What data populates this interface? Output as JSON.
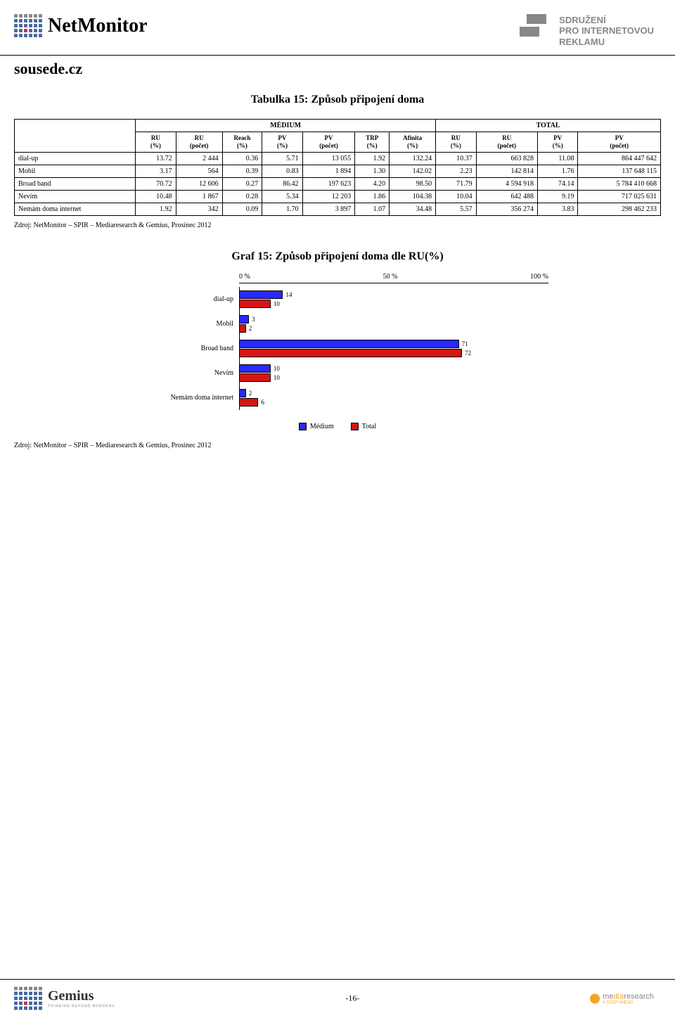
{
  "header": {
    "brand": "NetMonitor",
    "spir_line1": "SDRUŽENÍ",
    "spir_line2": "PRO INTERNETOVOU",
    "spir_line3": "REKLAMU"
  },
  "site_title": "sousede.cz",
  "table_title": "Tabulka 15: Způsob připojení doma",
  "table": {
    "group1": "MÉDIUM",
    "group2": "TOTAL",
    "columns": [
      "RU\n(%)",
      "RU\n(počet)",
      "Reach\n(%)",
      "PV\n(%)",
      "PV\n(počet)",
      "TRP\n(%)",
      "Afinita\n(%)",
      "RU\n(%)",
      "RU\n(počet)",
      "PV\n(%)",
      "PV\n(počet)"
    ],
    "rows": [
      {
        "label": "dial-up",
        "cells": [
          "13.72",
          "2 444",
          "0.36",
          "5.71",
          "13 055",
          "1.92",
          "132.24",
          "10.37",
          "663 828",
          "11.08",
          "864 447 642"
        ]
      },
      {
        "label": "Mobil",
        "cells": [
          "3.17",
          "564",
          "0.39",
          "0.83",
          "1 894",
          "1.30",
          "142.02",
          "2.23",
          "142 814",
          "1.76",
          "137 648 115"
        ]
      },
      {
        "label": "Broad band",
        "cells": [
          "70.72",
          "12 606",
          "0.27",
          "86.42",
          "197 623",
          "4.20",
          "98.50",
          "71.79",
          "4 594 918",
          "74.14",
          "5 784 410 668"
        ]
      },
      {
        "label": "Nevím",
        "cells": [
          "10.48",
          "1 867",
          "0.28",
          "5.34",
          "12 203",
          "1.86",
          "104.38",
          "10.04",
          "642 488",
          "9.19",
          "717 025 631"
        ]
      },
      {
        "label": "Nemám doma internet",
        "cells": [
          "1.92",
          "342",
          "0.09",
          "1.70",
          "3 897",
          "1.07",
          "34.48",
          "5.57",
          "356 274",
          "3.83",
          "298 462 233"
        ]
      }
    ]
  },
  "source": "Zdroj: NetMonitor – SPIR – Mediaresearch & Gemius, Prosinec 2012",
  "chart_title": "Graf 15: Způsob připojení doma dle RU(%)",
  "chart": {
    "type": "bar",
    "axis": {
      "min": 0,
      "max": 100,
      "ticks": [
        "0 %",
        "50 %",
        "100 %"
      ]
    },
    "categories": [
      "dial-up",
      "Mobil",
      "Broad band",
      "Nevím",
      "Nemám doma internet"
    ],
    "series": [
      {
        "name": "Médium",
        "color": "#2929ff",
        "values": [
          14,
          3,
          71,
          10,
          2
        ]
      },
      {
        "name": "Total",
        "color": "#d81414",
        "values": [
          10,
          2,
          72,
          10,
          6
        ]
      }
    ],
    "bar_border": "#000000",
    "background": "#ffffff"
  },
  "legend": {
    "medium": "Médium",
    "total": "Total"
  },
  "footer": {
    "gemius": "Gemius",
    "gemius_sub": "THINKING BEYOND BORDERS",
    "page": "-16-",
    "mr_pre": "me",
    "mr_mid": "dia",
    "mr_post": "research",
    "mr_sub": "A STEP AHEAD"
  }
}
